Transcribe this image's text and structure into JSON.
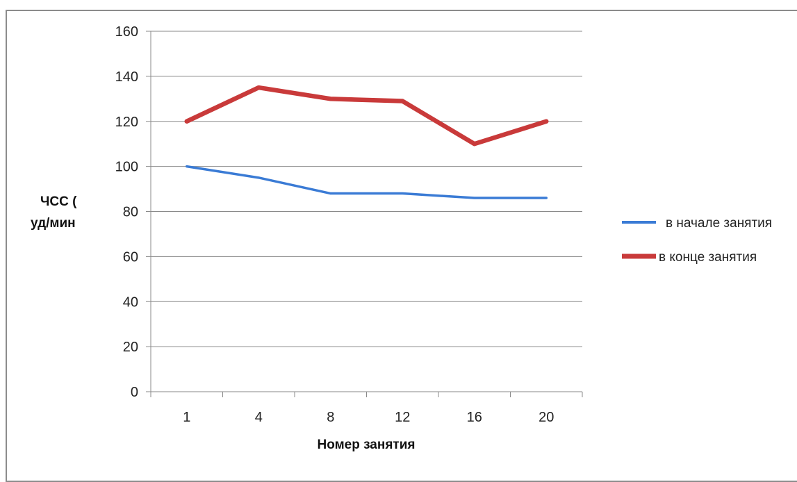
{
  "chart_data": {
    "type": "line",
    "xlabel": "Номер занятия",
    "ylabel_lines": [
      "ЧСС (",
      "уд/мин"
    ],
    "categories": [
      "1",
      "4",
      "8",
      "12",
      "16",
      "20"
    ],
    "ylim": [
      0,
      160
    ],
    "yticks": [
      0,
      20,
      40,
      60,
      80,
      100,
      120,
      140,
      160
    ],
    "grid": true,
    "legend_position": "right",
    "series": [
      {
        "name": "в начале занятия",
        "color": "#3a7bd5",
        "values": [
          100,
          95,
          88,
          88,
          86,
          86
        ]
      },
      {
        "name": "в конце занятия",
        "color": "#c93a3a",
        "values": [
          120,
          135,
          130,
          129,
          110,
          120
        ]
      }
    ]
  }
}
